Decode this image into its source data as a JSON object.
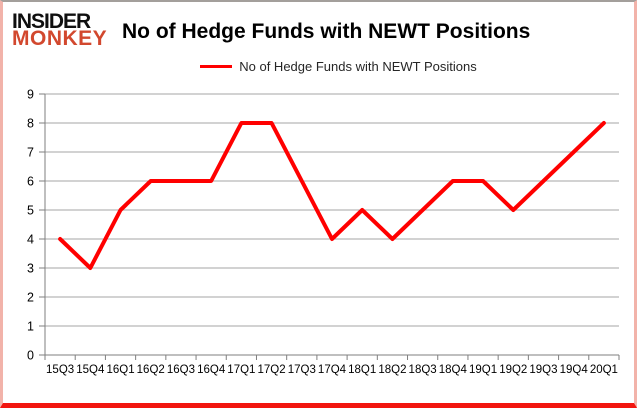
{
  "brand": {
    "name": "Insider Monkey logo",
    "line1": "INSIDER",
    "line2": "MONKEY",
    "line1_color": "#0f0f0f",
    "line2_color": "#d2482e"
  },
  "header": {
    "title": "No of Hedge Funds with NEWT Positions"
  },
  "legend": {
    "label": "No of Hedge Funds with NEWT Positions",
    "swatch_color": "#ff0000"
  },
  "chart_data": {
    "type": "line",
    "title": "No of Hedge Funds with NEWT Positions",
    "categories": [
      "15Q3",
      "15Q4",
      "16Q1",
      "16Q2",
      "16Q3",
      "16Q4",
      "17Q1",
      "17Q2",
      "17Q3",
      "17Q4",
      "18Q1",
      "18Q2",
      "18Q3",
      "18Q4",
      "19Q1",
      "19Q2",
      "19Q3",
      "19Q4",
      "20Q1"
    ],
    "series": [
      {
        "name": "No of Hedge Funds with NEWT Positions",
        "color": "#ff0000",
        "line_width": 4,
        "values": [
          4,
          3,
          5,
          6,
          6,
          6,
          8,
          8,
          6,
          4,
          5,
          4,
          5,
          6,
          6,
          5,
          6,
          7,
          8
        ]
      }
    ],
    "ylim": [
      0,
      9
    ],
    "ytick_step": 1,
    "xlabel": "",
    "ylabel": "",
    "grid": "horizontal-only",
    "legend_position": "top-center",
    "axis_color": "#7f7f7f",
    "gridline_color": "#a6a6a6",
    "tick_label_color": "#000000"
  },
  "frame": {
    "bottom_bar_color": "#f2150f",
    "side_border_color": "#f2b3aa",
    "top_border_color": "#a39f9b"
  }
}
